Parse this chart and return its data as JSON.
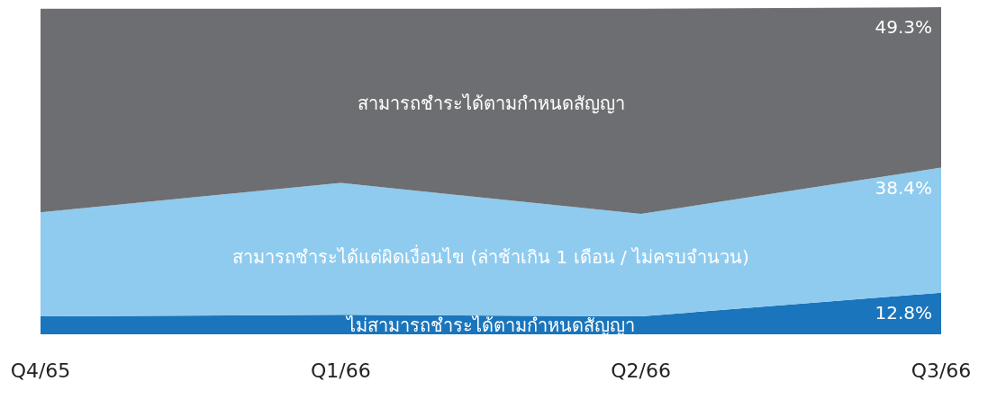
{
  "chart_data": {
    "type": "area",
    "stacked": true,
    "ylim": [
      0,
      100.5
    ],
    "tick_labels": "x",
    "legend": false,
    "categories": [
      "Q4/65",
      "Q1/66",
      "Q2/66",
      "Q3/66"
    ],
    "series": [
      {
        "name": "ไม่สามารถชำระได้ตามกำหนดสัญญา",
        "color": "#1a75bc",
        "values": [
          5.5,
          6,
          5.5,
          12.8
        ],
        "value_labels": [
          null,
          null,
          null,
          "12.8%"
        ]
      },
      {
        "name": "สามารถชำระได้แต่ผิดเงื่อนไข (ล่าช้าเกิน 1 เดือน / ไม่ครบจำนวน)",
        "color": "#8fcbee",
        "values": [
          32,
          40.5,
          31.5,
          38.4
        ],
        "value_labels": [
          null,
          null,
          null,
          "38.4%"
        ]
      },
      {
        "name": "สามารถชำระได้ตามกำหนดสัญญา",
        "color": "#6d6e71",
        "values": [
          62.5,
          53.5,
          63,
          49.3
        ],
        "value_labels": [
          null,
          null,
          null,
          "49.3%"
        ]
      }
    ]
  }
}
